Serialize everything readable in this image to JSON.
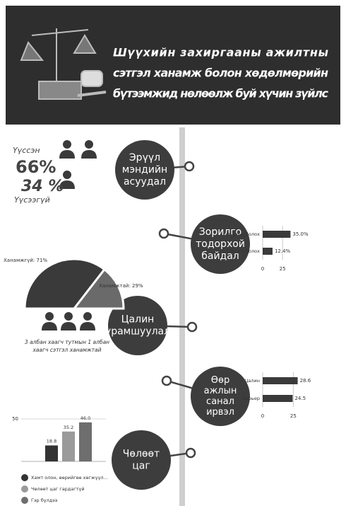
{
  "header": {
    "title_lines": [
      "Шүүхийн захиргааны ажилтны",
      "сэтгэл ханамж болон хөдөлмөрийн",
      "бүтээмжид нөлөөлж буй хүчин зүйлс"
    ]
  },
  "stats": {
    "top_label": "Үүссэн",
    "top_value": "66%",
    "bottom_value": "34 %",
    "bottom_label": "Үүсээгүй"
  },
  "pie_caption_lines": [
    "3 албан хаагч тутмын 1 албан",
    "хаагч сэтгэл ханамжтай"
  ],
  "sections": [
    {
      "label_lines": [
        "Эрүүл",
        "мэндийн",
        "асуудал"
      ]
    },
    {
      "label_lines": [
        "Зорилго",
        "тодорхой",
        "байдал"
      ]
    },
    {
      "label_lines": [
        "Цалин",
        "урамшуулал"
      ]
    },
    {
      "label_lines": [
        "Өөр",
        "ажлын",
        "санал",
        "ирвэл"
      ]
    },
    {
      "label_lines": [
        "Чөлөөт",
        "цаг"
      ]
    }
  ],
  "chart_data": [
    {
      "type": "pie",
      "values": [
        71,
        29
      ],
      "value_labels": [
        "Ханамжгүй: 71%",
        "Ханамжтай: 29%"
      ],
      "colors": [
        "#3a3a3a",
        "#6a6a6a"
      ]
    },
    {
      "type": "bar",
      "orientation": "horizontal",
      "categories": [
        "Хуульч болох",
        "Шүүгч болох"
      ],
      "values": [
        35.0,
        12.4
      ],
      "value_labels": [
        "35.0%",
        "12.4%"
      ],
      "color": "#3a3a3a",
      "xlim": [
        0,
        40
      ],
      "xticks": [
        0,
        25
      ]
    },
    {
      "type": "bar",
      "orientation": "horizontal",
      "categories": [
        "Цалин",
        "Карьер"
      ],
      "values": [
        28.6,
        24.5
      ],
      "color": "#3a3a3a",
      "xlim": [
        0,
        30
      ],
      "xticks": [
        0,
        25
      ]
    },
    {
      "type": "bar",
      "orientation": "vertical",
      "ylim": [
        0,
        50
      ],
      "yticks": [
        50
      ],
      "series": [
        {
          "name": "Хамт олон, өөрийгөө хөгжүүл...",
          "color": "#333333",
          "values": [
            18.8
          ],
          "value_labels": [
            "18.8"
          ]
        },
        {
          "name": "Чөлөөт цаг гардагтүй",
          "color": "#9a9a9a",
          "values": [
            35.2
          ],
          "value_labels": [
            "35.2"
          ]
        },
        {
          "name": "Гэр бүлдээ",
          "color": "#6e6e6e",
          "values": [
            46.0
          ],
          "value_labels": [
            "46.0"
          ]
        }
      ]
    }
  ]
}
